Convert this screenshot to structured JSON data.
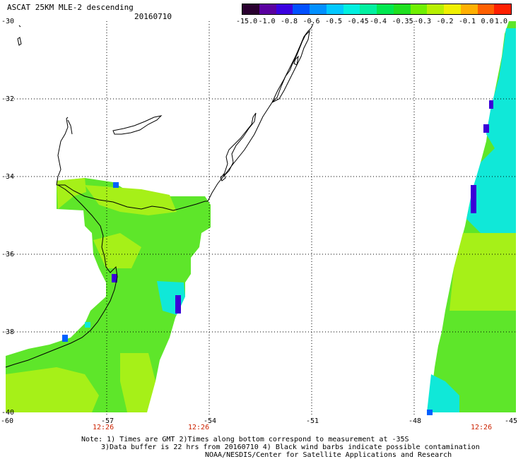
{
  "header": {
    "title": "ASCAT 25KM MLE-2 descending",
    "date": "20160710"
  },
  "colorbar": {
    "colors": [
      "#2a0030",
      "#5a00a0",
      "#3a00e0",
      "#0050ff",
      "#0090ff",
      "#00c8ff",
      "#00f0e0",
      "#00f0a0",
      "#00e850",
      "#20e020",
      "#70f000",
      "#b8f000",
      "#f0f000",
      "#ffb000",
      "#ff6000",
      "#ff2000"
    ],
    "labels": [
      "-15.0",
      "-1.0",
      "-0.8",
      "-0.6",
      "-0.5",
      "-0.45",
      "-0.4",
      "-0.35",
      "-0.3",
      "-0.2",
      "-0.1",
      "0.0",
      "1.0"
    ]
  },
  "axes": {
    "lat_labels": [
      "-30",
      "-32",
      "-34",
      "-36",
      "-38",
      "-40"
    ],
    "lon_labels": [
      "-60",
      "-57",
      "-54",
      "-51",
      "-48",
      "-45"
    ]
  },
  "times": [
    "12:26",
    "12:26",
    "12:26"
  ],
  "notes": {
    "line1": "Note: 1) Times are GMT 2)Times along bottom correspond to measurement at -35S",
    "line2": "3)Data buffer is 22 hrs from 20160710 4) Black wind barbs indicate possible contamination",
    "line3": "NOAA/NESDIS/Center for Satellite Applications and Research"
  },
  "legend_colors": {
    "green_main": "#5ee62a",
    "green_yellow": "#a6f018",
    "cyan": "#10e8d8",
    "blue": "#0060ff",
    "indigo": "#3a00d8"
  }
}
